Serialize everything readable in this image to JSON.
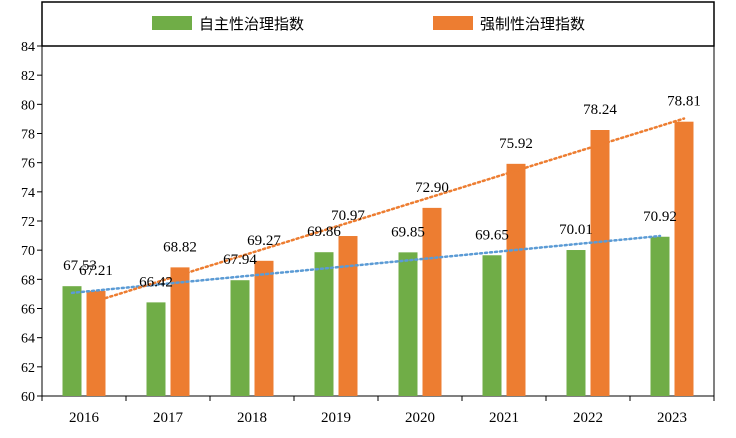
{
  "chart_data": {
    "type": "bar",
    "categories": [
      "2016",
      "2017",
      "2018",
      "2019",
      "2020",
      "2021",
      "2022",
      "2023"
    ],
    "series": [
      {
        "name": "自主性治理指数",
        "values": [
          67.53,
          66.42,
          67.94,
          69.86,
          69.85,
          69.65,
          70.01,
          70.92
        ],
        "labels": [
          "67.53",
          "66.42",
          "67.94",
          "69.86",
          "69.85",
          "69.65",
          "70.01",
          "70.92"
        ],
        "color": "#70ad47",
        "trendline_color": "#5b9bd5"
      },
      {
        "name": "强制性治理指数",
        "values": [
          67.21,
          68.82,
          69.27,
          70.97,
          72.9,
          75.92,
          78.24,
          78.81
        ],
        "labels": [
          "67.21",
          "68.82",
          "69.27",
          "70.97",
          "72.90",
          "75.92",
          "78.24",
          "78.81"
        ],
        "color": "#ed7d31",
        "trendline_color": "#ed7d31"
      }
    ],
    "ylim": [
      60,
      84
    ],
    "yticks": [
      "60",
      "62",
      "64",
      "66",
      "68",
      "70",
      "72",
      "74",
      "76",
      "78",
      "80",
      "82",
      "84"
    ],
    "trendline": "linear, dotted",
    "legend_position": "top",
    "grid": false,
    "title": "",
    "xlabel": "",
    "ylabel": ""
  }
}
